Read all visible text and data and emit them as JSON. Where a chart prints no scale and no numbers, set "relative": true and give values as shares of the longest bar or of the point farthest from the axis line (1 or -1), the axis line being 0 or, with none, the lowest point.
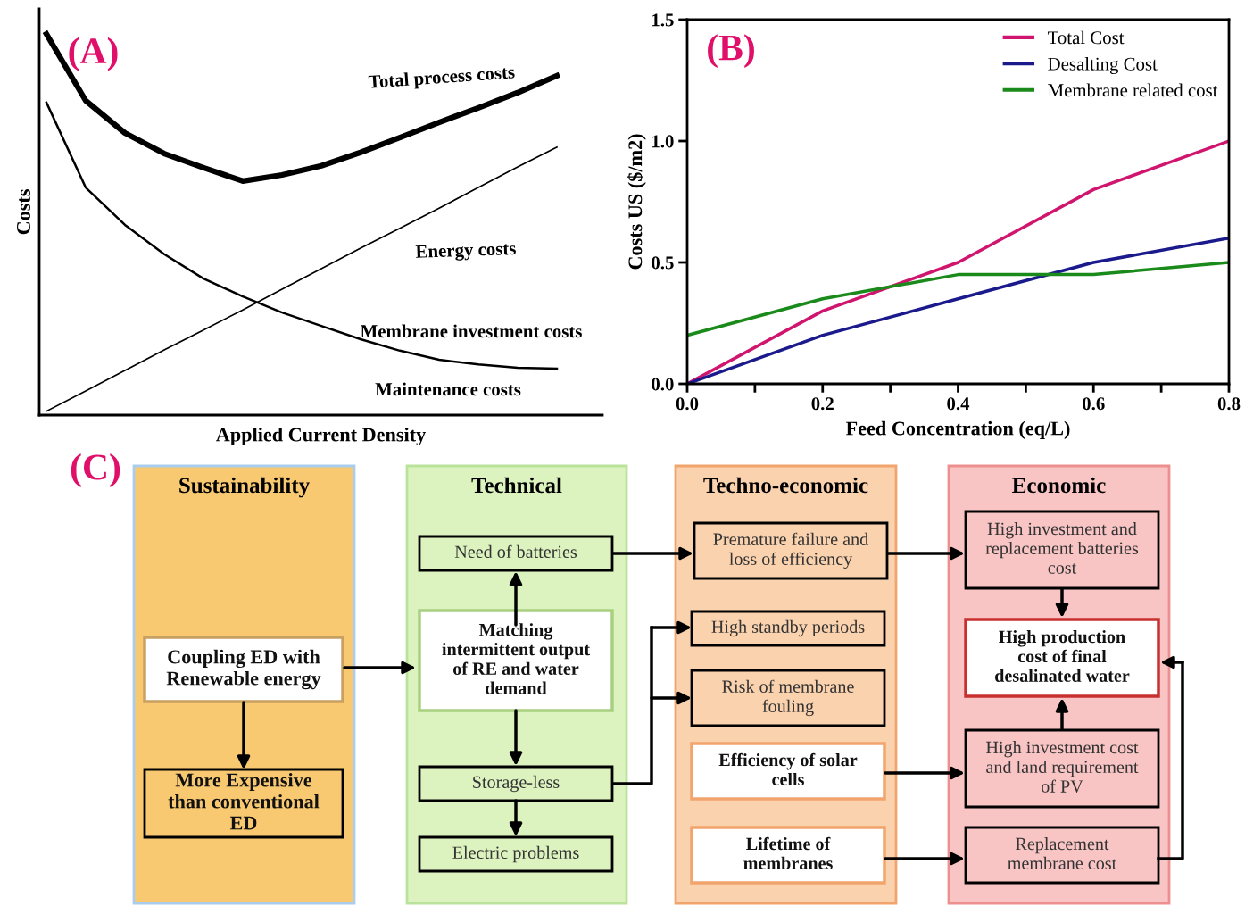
{
  "chart_data": [
    {
      "type": "line",
      "title": "(A)",
      "xlabel": "Applied Current Density",
      "ylabel": "Costs",
      "relative": true,
      "legend": false,
      "grid": false,
      "categories": [
        null,
        null,
        null,
        null,
        null,
        null,
        null,
        null,
        null,
        null,
        null,
        null,
        null,
        null
      ],
      "series": [
        {
          "color": "#000000",
          "values": [
            1.0,
            0.825,
            0.74,
            0.686,
            0.649,
            0.614,
            0.63,
            0.654,
            0.689,
            0.728,
            0.768,
            0.806,
            0.846,
            0.89
          ]
        },
        {
          "color": "#000000",
          "values": [
            0.01,
            0.063,
            0.117,
            0.171,
            0.223,
            0.276,
            0.33,
            0.384,
            0.438,
            0.49,
            0.543,
            0.597,
            0.651,
            0.703
          ]
        },
        {
          "color": "#000000",
          "values": [
            0.82,
            0.597,
            0.499,
            0.422,
            0.358,
            0.311,
            0.269,
            0.234,
            0.199,
            0.169,
            0.145,
            0.133,
            0.124,
            0.122
          ]
        }
      ],
      "annotations": [
        "Total process costs",
        "Energy costs",
        "Membrane investment costs",
        "Maintenance costs"
      ]
    },
    {
      "type": "line",
      "title": "(B)",
      "xlabel": "Feed Concentration (eq/L)",
      "ylabel": "Costs US ($/m2)",
      "legend": "top right",
      "grid": false,
      "marker": "none",
      "line_style": "solid",
      "x": [
        0,
        0.2,
        0.4,
        0.6,
        0.8
      ],
      "xlim": [
        0,
        0.8
      ],
      "ylim": [
        0,
        1.5
      ],
      "xticks": [
        {
          "value": 0,
          "label": "0.0"
        },
        {
          "value": 0.1,
          "label": null
        },
        0.2,
        {
          "value": 0.3,
          "label": null
        },
        0.4,
        {
          "value": 0.5,
          "label": null
        },
        0.6,
        {
          "value": 0.7,
          "label": null
        },
        0.8
      ],
      "yticks": [
        {
          "value": 0,
          "label": "0.0"
        },
        0.5,
        {
          "value": 1,
          "label": "1.0"
        },
        1.5
      ],
      "series": [
        {
          "name": "Total Cost",
          "color": "#d0156f",
          "values": [
            0,
            0.3,
            0.5,
            0.8,
            1.0
          ]
        },
        {
          "name": "Desalting Cost",
          "color": "#1a1a8c",
          "values": [
            0,
            0.2,
            0.35,
            0.5,
            0.6
          ]
        },
        {
          "name": "Membrane related cost",
          "color": "#1a8a1a",
          "values": [
            0.2,
            0.35,
            0.45,
            0.45,
            0.5
          ]
        }
      ]
    },
    {
      "type": "other",
      "title": "(C)",
      "categories": [
        "Sustainability",
        "Technical",
        "Techno-economic",
        "Economic"
      ],
      "annotations": [
        "Coupling ED with\nRenewable energy",
        "More Expensive\nthan conventional\nED",
        "Need of batteries",
        "Matching\nintermittent output\nof RE and water\ndemand",
        "Storage-less",
        "Electric problems",
        "Premature failure and\nloss of efficiency",
        "High standby periods",
        "Risk of membrane\nfouling",
        "Efficiency of solar\ncells",
        "Lifetime of\nmembranes",
        "High investment and\nreplacement batteries\ncost",
        "High production\ncost of final\ndesalinated water",
        "High investment cost\nand land requirement\nof PV",
        "Replacement\nmembrane cost"
      ]
    }
  ]
}
